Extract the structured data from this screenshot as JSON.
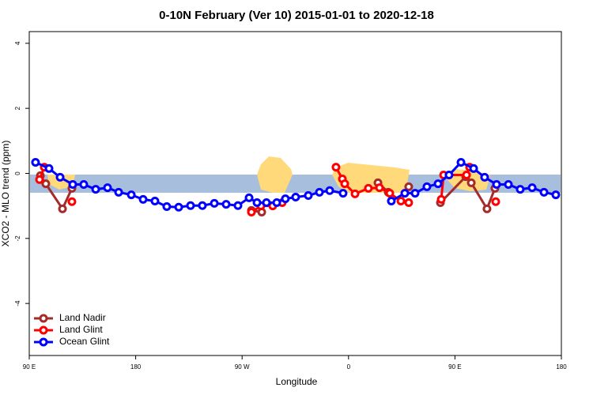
{
  "chart_data": {
    "type": "line",
    "title": "0-10N February (Ver 10)   2015-01-01 to 2020-12-18",
    "xlabel": "Longitude",
    "ylabel": "XCO2 - MLO trend (ppm)",
    "xlim": [
      90,
      540
    ],
    "xticks": [
      {
        "value": 90,
        "label": "90 E"
      },
      {
        "value": 180,
        "label": "180"
      },
      {
        "value": 270,
        "label": "90 W"
      },
      {
        "value": 360,
        "label": "0"
      },
      {
        "value": 450,
        "label": "90 E"
      },
      {
        "value": 540,
        "label": "180"
      }
    ],
    "ylim": [
      -5.6,
      4.36
    ],
    "yticks": [
      -4,
      -2,
      0,
      2,
      4
    ],
    "legend": "bottomleft",
    "series": [
      {
        "name": "Land Nadir",
        "color": "#a52a2a",
        "x": [
          99.4,
          104.0,
          118.1,
          126.1,
          null,
          277.9,
          286.6,
          null,
          384.9,
          393.6,
          null,
          410.9,
          null,
          437.7,
          459.1,
          463.8,
          477.1,
          483.8
        ],
        "values": [
          -0.07,
          -0.32,
          -1.09,
          -0.46,
          null,
          -1.14,
          -1.19,
          null,
          -0.29,
          -0.58,
          null,
          -0.41,
          null,
          -0.9,
          -0.1,
          -0.29,
          -1.09,
          -0.46
        ]
      },
      {
        "name": "Land Glint",
        "color": "#ff0000",
        "x": [
          98.7,
          102.7,
          null,
          126.1,
          null,
          277.9,
          285.9,
          295.9,
          303.9,
          null,
          349.4,
          354.8,
          356.8,
          365.5,
          376.8,
          386.2,
          394.9,
          404.3,
          410.9,
          null,
          438.4,
          440.4,
          459.8,
          462.4,
          null,
          484.5
        ],
        "values": [
          -0.19,
          0.19,
          null,
          -0.87,
          null,
          -1.19,
          -1.0,
          -1.0,
          -0.9,
          null,
          0.19,
          -0.17,
          -0.32,
          -0.63,
          -0.46,
          -0.44,
          -0.61,
          -0.85,
          -0.9,
          null,
          -0.8,
          -0.05,
          -0.05,
          0.19,
          null,
          -0.87
        ]
      },
      {
        "name": "Ocean Glint",
        "color": "#0000ff",
        "x": [
          95.3,
          106.7,
          116.1,
          126.8,
          136.1,
          146.2,
          156.2,
          165.6,
          176.3,
          186.3,
          196.3,
          206.3,
          216.4,
          226.4,
          236.4,
          246.5,
          256.5,
          266.5,
          275.9,
          282.6,
          290.6,
          299.3,
          306.6,
          315.3,
          326.0,
          335.4,
          344.1,
          355.4,
          null,
          396.2,
          407.6,
          416.3,
          426.3,
          435.7,
          445.0,
          455.1,
          465.8,
          475.1,
          485.2,
          495.2,
          505.2,
          515.3,
          525.3,
          535.3
        ],
        "values": [
          0.34,
          0.15,
          -0.12,
          -0.34,
          -0.34,
          -0.49,
          -0.44,
          -0.58,
          -0.66,
          -0.8,
          -0.85,
          -1.02,
          -1.04,
          -0.99,
          -0.99,
          -0.92,
          -0.95,
          -0.99,
          -0.75,
          -0.9,
          -0.9,
          -0.9,
          -0.78,
          -0.73,
          -0.68,
          -0.58,
          -0.53,
          -0.61,
          null,
          -0.85,
          -0.61,
          -0.61,
          -0.41,
          -0.32,
          -0.05,
          0.34,
          0.15,
          -0.12,
          -0.34,
          -0.34,
          -0.49,
          -0.44,
          -0.58,
          -0.66
        ]
      }
    ]
  }
}
